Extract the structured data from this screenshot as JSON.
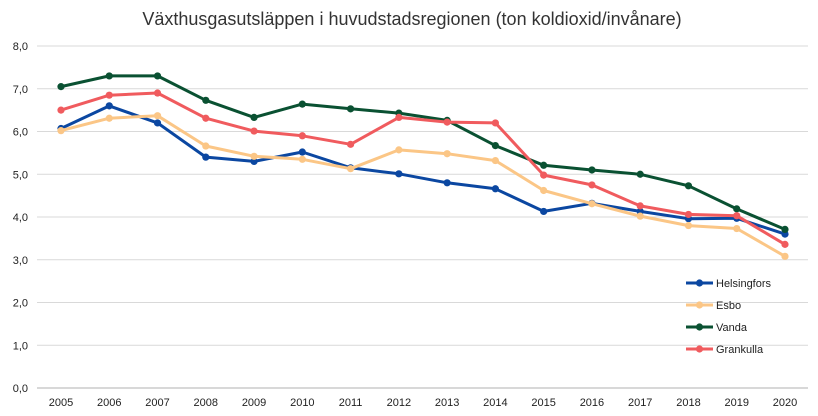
{
  "chart_data": {
    "type": "line",
    "title": "Växthusgasutsläppen i huvudstadsregionen (ton koldioxid/invånare)",
    "xlabel": "",
    "ylabel": "",
    "categories": [
      "2005",
      "2006",
      "2007",
      "2008",
      "2009",
      "2010",
      "2011",
      "2012",
      "2013",
      "2014",
      "2015",
      "2016",
      "2017",
      "2018",
      "2019",
      "2020"
    ],
    "ylim": [
      0,
      8
    ],
    "ytick_labels": [
      "0,0",
      "1,0",
      "2,0",
      "3,0",
      "4,0",
      "5,0",
      "6,0",
      "7,0",
      "8,0"
    ],
    "grid": true,
    "legend_position": "bottom-right",
    "series": [
      {
        "name": "Helsingfors",
        "color": "#0b47a1",
        "values": [
          6.07,
          6.6,
          6.2,
          5.4,
          5.3,
          5.52,
          5.15,
          5.01,
          4.8,
          4.66,
          4.13,
          4.32,
          4.13,
          3.96,
          3.97,
          3.6
        ]
      },
      {
        "name": "Esbo",
        "color": "#fbc686",
        "values": [
          6.02,
          6.31,
          6.37,
          5.66,
          5.42,
          5.35,
          5.13,
          5.57,
          5.48,
          5.32,
          4.62,
          4.31,
          4.02,
          3.8,
          3.73,
          3.08
        ]
      },
      {
        "name": "Vanda",
        "color": "#0a5132",
        "values": [
          7.05,
          7.3,
          7.3,
          6.73,
          6.33,
          6.64,
          6.53,
          6.43,
          6.26,
          5.67,
          5.21,
          5.1,
          5.0,
          4.73,
          4.19,
          3.71
        ]
      },
      {
        "name": "Grankulla",
        "color": "#f05b5e",
        "values": [
          6.5,
          6.85,
          6.9,
          6.31,
          6.01,
          5.9,
          5.7,
          6.33,
          6.22,
          6.2,
          4.98,
          4.75,
          4.26,
          4.06,
          4.03,
          3.36
        ]
      }
    ]
  }
}
